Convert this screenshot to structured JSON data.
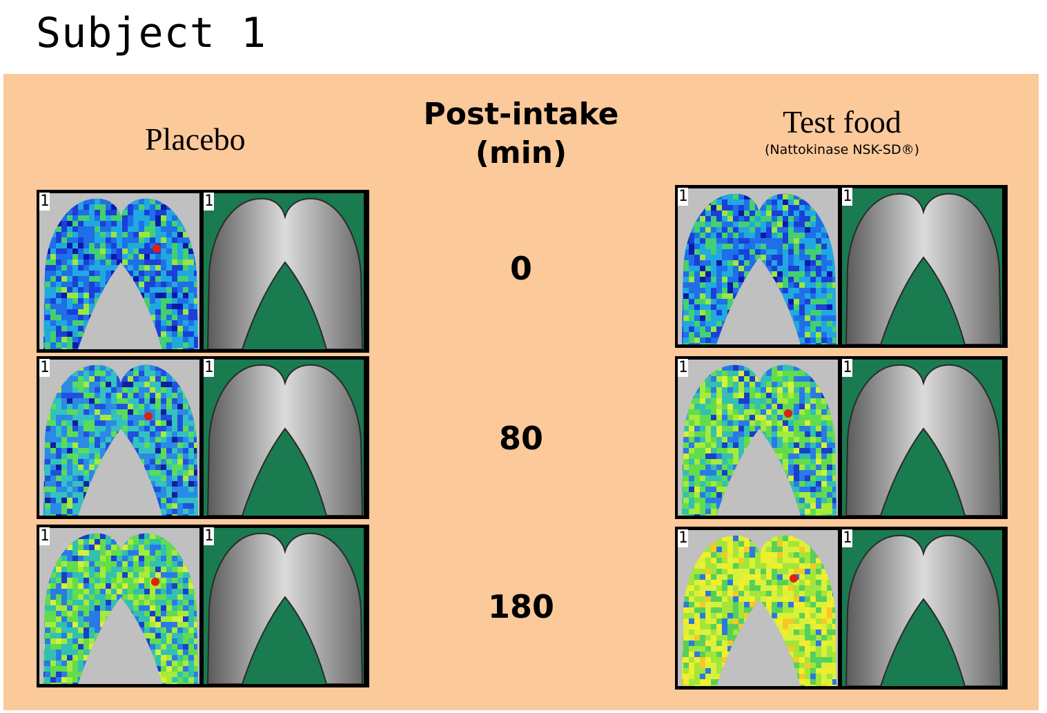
{
  "title": "Subject 1",
  "placebo_label": "Placebo",
  "post_intake": {
    "line1": "Post-intake",
    "line2": "(min)"
  },
  "test_food": {
    "main": "Test food",
    "sub": "(Nattokinase NSK-SD®)"
  },
  "panel_tag": "1",
  "timepoints": [
    "0",
    "80",
    "180"
  ],
  "colors": {
    "panel_background": "#fcc99a",
    "thermal_background": "#c0c0c0",
    "morphology_background": "#1a7a50",
    "finger_gray": "#9a9a9a"
  },
  "images": [
    {
      "group": "placebo",
      "time": "0",
      "perfusion_level": "low"
    },
    {
      "group": "placebo",
      "time": "80",
      "perfusion_level": "low-medium"
    },
    {
      "group": "placebo",
      "time": "180",
      "perfusion_level": "medium"
    },
    {
      "group": "test_food",
      "time": "0",
      "perfusion_level": "low"
    },
    {
      "group": "test_food",
      "time": "80",
      "perfusion_level": "medium"
    },
    {
      "group": "test_food",
      "time": "180",
      "perfusion_level": "high"
    }
  ]
}
